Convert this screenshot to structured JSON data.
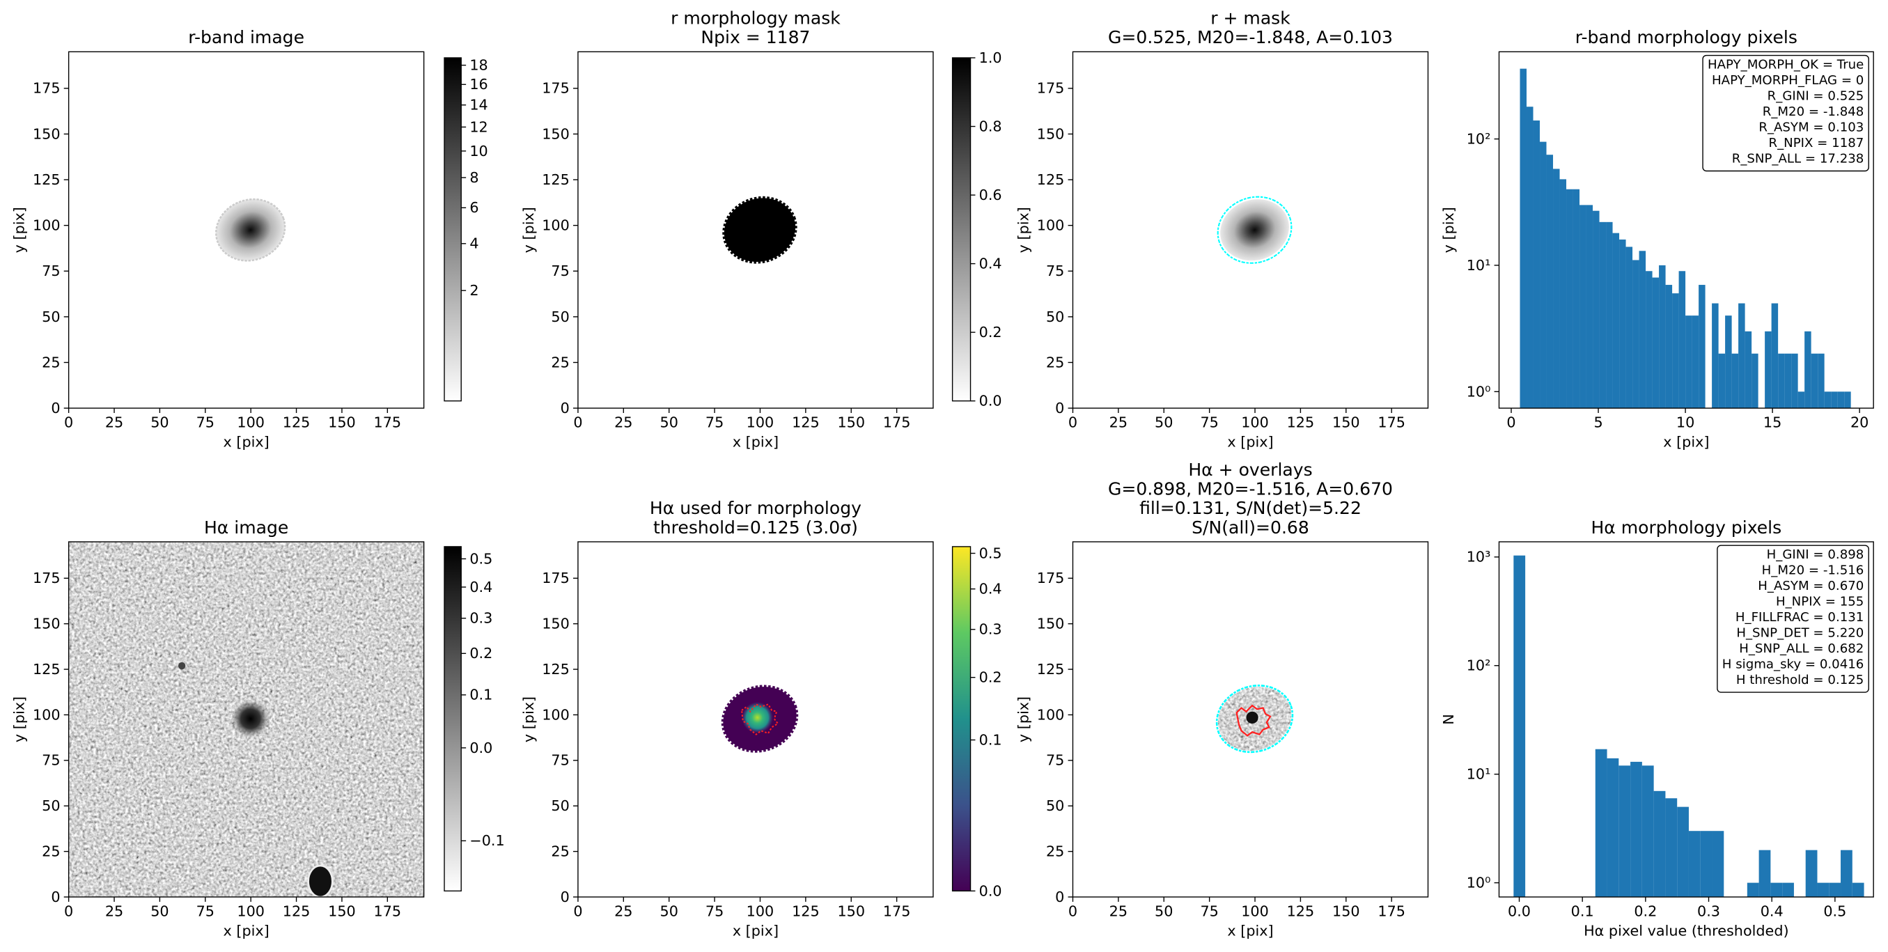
{
  "chart_data": [
    {
      "type": "image",
      "title": [
        "r-band image"
      ],
      "xlabel": "x [pix]",
      "ylabel": "y [pix]",
      "xlim": [
        0,
        195
      ],
      "ylim": [
        0,
        195
      ],
      "xticks": [
        0,
        25,
        50,
        75,
        100,
        125,
        150,
        175
      ],
      "yticks": [
        0,
        25,
        50,
        75,
        100,
        125,
        150,
        175
      ],
      "colorbar": {
        "colormap": "gray_r",
        "stretch": "sqrt",
        "clim": [
          0.06,
          18.8
        ],
        "ticks": [
          2,
          4,
          6,
          8,
          10,
          12,
          14,
          16,
          18
        ]
      }
    },
    {
      "type": "image",
      "title": [
        "r morphology mask",
        "Npix = 1187"
      ],
      "xlabel": "x [pix]",
      "ylabel": "y [pix]",
      "xlim": [
        0,
        195
      ],
      "ylim": [
        0,
        195
      ],
      "xticks": [
        0,
        25,
        50,
        75,
        100,
        125,
        150,
        175
      ],
      "yticks": [
        0,
        25,
        50,
        75,
        100,
        125,
        150,
        175
      ],
      "colorbar": {
        "colormap": "gray_r",
        "stretch": "linear",
        "clim": [
          0,
          1
        ],
        "ticks": [
          {
            "value": 0,
            "label": "0.0"
          },
          {
            "value": 0.2,
            "label": "0.2"
          },
          {
            "value": 0.4,
            "label": "0.4"
          },
          {
            "value": 0.6,
            "label": "0.6"
          },
          {
            "value": 0.8,
            "label": "0.8"
          },
          {
            "value": 1,
            "label": "1.0"
          }
        ]
      }
    },
    {
      "type": "image",
      "title": [
        "r + mask",
        "G=0.525, M20=-1.848, A=0.103"
      ],
      "xlabel": "x [pix]",
      "ylabel": "y [pix]",
      "xlim": [
        0,
        195
      ],
      "ylim": [
        0,
        195
      ],
      "xticks": [
        0,
        25,
        50,
        75,
        100,
        125,
        150,
        175
      ],
      "yticks": [
        0,
        25,
        50,
        75,
        100,
        125,
        150,
        175
      ]
    },
    {
      "type": "histogram",
      "title": [
        "r-band morphology pixels"
      ],
      "xlabel": "x [pix]",
      "ylabel": "y [pix]",
      "color": "#1f77b4",
      "yscale": "log",
      "bins": [
        0.5,
        0.88,
        1.26,
        1.64,
        2.02,
        2.4,
        2.78,
        3.16,
        3.54,
        3.92,
        4.3,
        4.68,
        5.06,
        5.44,
        5.82,
        6.2,
        6.58,
        6.96,
        7.34,
        7.72,
        8.1,
        8.48,
        8.86,
        9.24,
        9.62,
        10,
        10.38,
        10.76,
        11.14,
        11.52,
        11.9,
        12.28,
        12.66,
        13.04,
        13.42,
        13.8,
        14.18,
        14.56,
        14.94,
        15.32,
        15.7,
        16.08,
        16.46,
        16.84,
        17.22,
        17.6,
        17.98,
        18.36,
        18.74,
        19.12,
        19.5
      ],
      "counts": [
        360,
        180,
        140,
        95,
        75,
        58,
        48,
        40,
        40,
        30,
        30,
        27,
        22,
        22,
        18,
        16,
        14,
        11,
        13,
        9,
        8,
        10,
        7,
        6,
        9,
        4,
        4,
        7,
        0,
        5,
        2,
        4,
        2,
        5,
        3,
        2,
        0,
        3,
        5,
        2,
        2,
        2,
        1,
        3,
        2,
        2,
        1,
        1,
        1,
        1
      ],
      "xlim": [
        -0.7,
        20.8
      ],
      "ylim": [
        0.74,
        490
      ],
      "xticks": [
        0,
        5,
        10,
        15,
        20
      ],
      "yticks": [
        {
          "value": 1,
          "label": "10⁰"
        },
        {
          "value": 10,
          "label": "10¹"
        },
        {
          "value": 100,
          "label": "10²"
        }
      ],
      "annotation": [
        "HAPY_MORPH_OK = True",
        "HAPY_MORPH_FLAG = 0",
        "R_GINI = 0.525",
        "R_M20 = -1.848",
        "R_ASYM = 0.103",
        "R_NPIX = 1187",
        "R_SNP_ALL = 17.238"
      ]
    },
    {
      "type": "image",
      "title": [
        "Hα image"
      ],
      "xlabel": "x [pix]",
      "ylabel": "y [pix]",
      "xlim": [
        0,
        195
      ],
      "ylim": [
        0,
        195
      ],
      "xticks": [
        0,
        25,
        50,
        75,
        100,
        125,
        150,
        175
      ],
      "yticks": [
        0,
        25,
        50,
        75,
        100,
        125,
        150,
        175
      ],
      "colorbar": {
        "colormap": "gray_r",
        "stretch": "sqrt",
        "clim": [
          -0.114,
          0.546
        ],
        "ticks": [
          {
            "value": -0.1,
            "label": "−0.1"
          },
          {
            "value": 0,
            "label": "0.0"
          },
          0.1,
          0.2,
          0.3,
          0.4,
          0.5
        ]
      }
    },
    {
      "type": "image",
      "title": [
        "Hα used for morphology",
        "threshold=0.125 (3.0σ)"
      ],
      "xlabel": "x [pix]",
      "ylabel": "y [pix]",
      "xlim": [
        0,
        195
      ],
      "ylim": [
        0,
        195
      ],
      "xticks": [
        0,
        25,
        50,
        75,
        100,
        125,
        150,
        175
      ],
      "yticks": [
        0,
        25,
        50,
        75,
        100,
        125,
        150,
        175
      ],
      "colorbar": {
        "colormap": "viridis",
        "stretch": "sqrt",
        "clim": [
          0,
          0.52
        ],
        "ticks": [
          {
            "value": 0,
            "label": "0.0"
          },
          0.1,
          0.2,
          0.3,
          0.4,
          0.5
        ]
      }
    },
    {
      "type": "image",
      "title": [
        "Hα + overlays",
        "G=0.898, M20=-1.516, A=0.670",
        "fill=0.131, S/N(det)=5.22",
        "S/N(all)=0.68"
      ],
      "xlabel": "x [pix]",
      "ylabel": "y [pix]",
      "xlim": [
        0,
        195
      ],
      "ylim": [
        0,
        195
      ],
      "xticks": [
        0,
        25,
        50,
        75,
        100,
        125,
        150,
        175
      ],
      "yticks": [
        0,
        25,
        50,
        75,
        100,
        125,
        150,
        175
      ]
    },
    {
      "type": "histogram",
      "title": [
        "Hα morphology pixels"
      ],
      "xlabel": "Hα pixel value (thresholded)",
      "ylabel": "N",
      "color": "#1f77b4",
      "yscale": "log",
      "bins": [
        -0.009,
        0.0095,
        0.028,
        0.0465,
        0.065,
        0.0835,
        0.102,
        0.1205,
        0.139,
        0.1575,
        0.176,
        0.1945,
        0.213,
        0.2315,
        0.25,
        0.2685,
        0.287,
        0.3055,
        0.324,
        0.3425,
        0.361,
        0.3795,
        0.398,
        0.4165,
        0.435,
        0.4535,
        0.472,
        0.4905,
        0.509,
        0.5275,
        0.546
      ],
      "counts": [
        1032,
        0,
        0,
        0,
        0,
        0,
        0,
        17,
        14,
        12,
        13,
        12,
        7,
        6,
        5,
        3,
        3,
        3,
        0,
        0,
        1,
        2,
        1,
        1,
        0,
        2,
        1,
        1,
        2,
        1
      ],
      "xlim": [
        -0.032,
        0.561
      ],
      "ylim": [
        0.74,
        1380
      ],
      "xticks": [
        {
          "value": 0,
          "label": "0.0"
        },
        0.1,
        0.2,
        0.3,
        0.4,
        0.5
      ],
      "yticks": [
        {
          "value": 1,
          "label": "10⁰"
        },
        {
          "value": 10,
          "label": "10¹"
        },
        {
          "value": 100,
          "label": "10²"
        },
        {
          "value": 1000,
          "label": "10³"
        }
      ],
      "annotation": [
        "H_GINI = 0.898",
        "H_M20 = -1.516",
        "H_ASYM = 0.670",
        "H_NPIX = 155",
        "H_FILLFRAC = 0.131",
        "H_SNP_DET = 5.220",
        "H_SNP_ALL = 0.682",
        "H sigma_sky = 0.0416",
        "H threshold = 0.125"
      ]
    }
  ]
}
